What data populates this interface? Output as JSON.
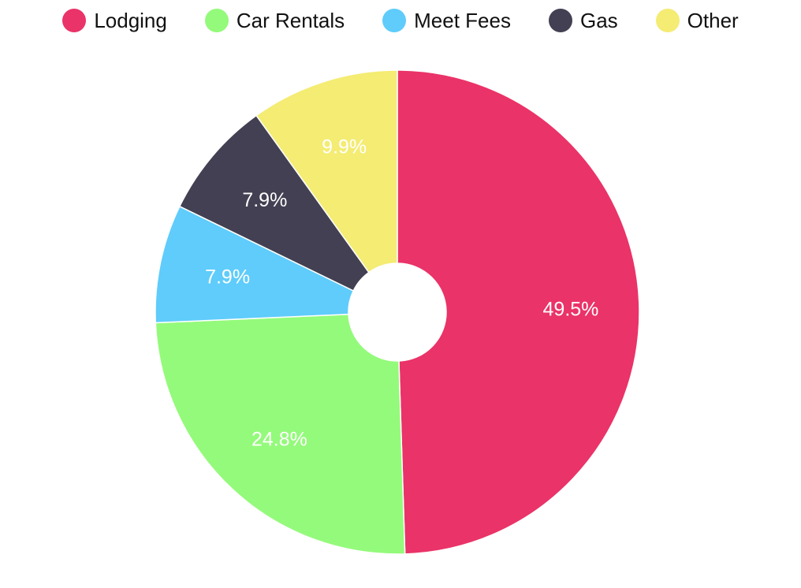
{
  "chart_data": {
    "type": "pie",
    "donut": true,
    "legend_position": "top-center",
    "slices": [
      {
        "label": "Lodging",
        "value": 49.5,
        "display": "49.5%",
        "color": "#EA3368"
      },
      {
        "label": "Car Rentals",
        "value": 24.8,
        "display": "24.8%",
        "color": "#94FA7B"
      },
      {
        "label": "Meet Fees",
        "value": 7.9,
        "display": "7.9%",
        "color": "#5FCCFB"
      },
      {
        "label": "Gas",
        "value": 7.9,
        "display": "7.9%",
        "color": "#424052"
      },
      {
        "label": "Other",
        "value": 9.9,
        "display": "9.9%",
        "color": "#F4EC73"
      }
    ]
  }
}
